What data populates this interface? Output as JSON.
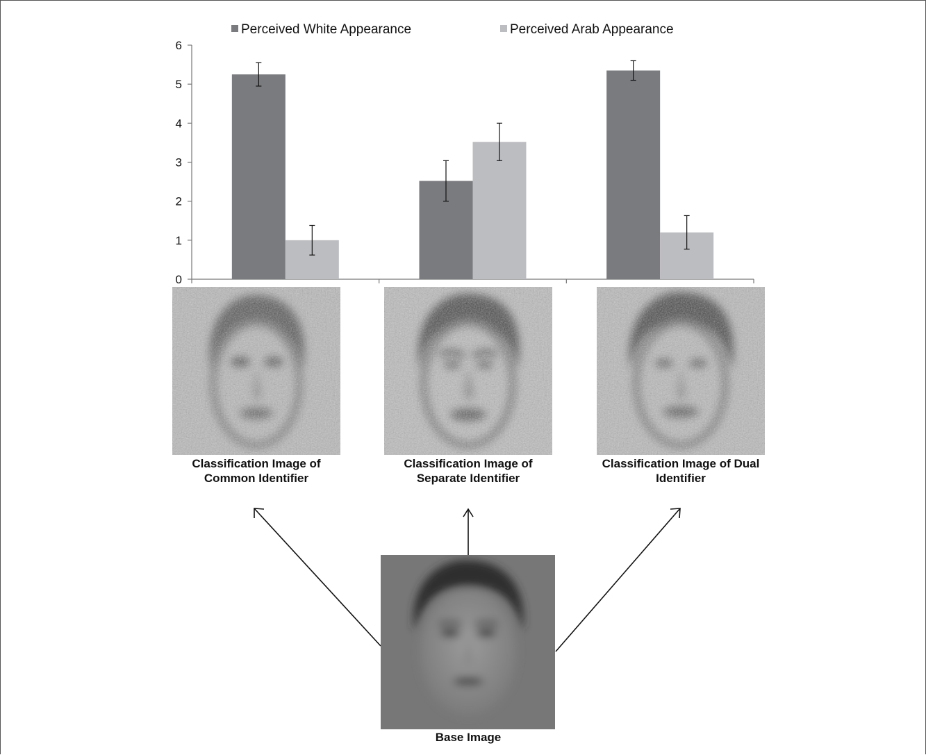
{
  "chart_data": {
    "type": "bar",
    "categories": [
      "Common Identifier",
      "Separate Identifier",
      "Dual Identifier"
    ],
    "series": [
      {
        "name": "Perceived White Appearance",
        "values": [
          5.25,
          2.52,
          5.35
        ],
        "errors": [
          0.3,
          0.52,
          0.25
        ]
      },
      {
        "name": "Perceived Arab Appearance",
        "values": [
          1.0,
          3.52,
          1.2
        ],
        "errors": [
          0.38,
          0.48,
          0.43
        ]
      }
    ],
    "ylim": [
      0,
      6
    ],
    "yticks": [
      "0",
      "1",
      "2",
      "3",
      "4",
      "5",
      "6"
    ],
    "grid": false,
    "legend_position": "top",
    "colors": [
      "#7a7b7f",
      "#bcbdc1"
    ]
  },
  "captions": {
    "common": [
      "Classification Image of",
      "Common Identifier"
    ],
    "separate": [
      "Classification Image of",
      "Separate Identifier"
    ],
    "dual": [
      "Classification Image of Dual",
      "Identifier"
    ],
    "base": "Base Image"
  }
}
